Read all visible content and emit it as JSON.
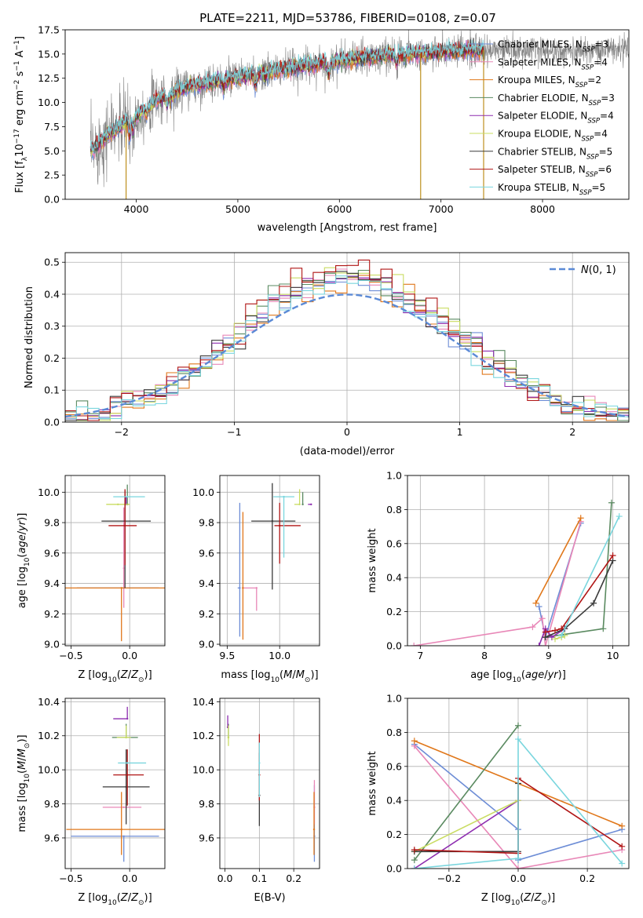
{
  "figure": {
    "title": "PLATE=2211, MJD=53786, FIBERID=0108, z=0.07"
  },
  "colors": {
    "Chabrier MILES": "#6d8dd6",
    "Salpeter MILES": "#e887b7",
    "Kroupa MILES": "#e0771a",
    "Chabrier ELODIE": "#5a8a60",
    "Salpeter ELODIE": "#8d2db0",
    "Kroupa ELODIE": "#c9dc62",
    "Chabrier STELIB": "#3a3a3a",
    "Salpeter STELIB": "#b01515",
    "Kroupa STELIB": "#7ad6de",
    "data": "#808080",
    "gaussian": "#5b8ad6"
  },
  "chart_data": [
    {
      "id": "spectrum",
      "type": "line",
      "title": "PLATE=2211, MJD=53786, FIBERID=0108, z=0.07",
      "xlabel": "wavelength [Angstrom, rest frame]",
      "ylabel": "Flux [f_λ 10^-17 erg cm^-2 s^-1 A^-1]",
      "xlim": [
        3300,
        8850
      ],
      "ylim": [
        0,
        17.5
      ],
      "xticks": [
        4000,
        5000,
        6000,
        7000,
        8000
      ],
      "yticks": [
        0.0,
        2.5,
        5.0,
        7.5,
        10.0,
        12.5,
        15.0,
        17.5
      ],
      "legend_position": "right",
      "legend": [
        {
          "label": "Chabrier MILES, N_SSP=3",
          "base": "Chabrier MILES, N",
          "sub": "SSP",
          "tail": "=3"
        },
        {
          "label": "Salpeter MILES, N_SSP=4",
          "base": "Salpeter MILES, N",
          "sub": "SSP",
          "tail": "=4"
        },
        {
          "label": "Kroupa MILES, N_SSP=2",
          "base": "Kroupa MILES, N",
          "sub": "SSP",
          "tail": "=2"
        },
        {
          "label": "Chabrier ELODIE, N_SSP=3",
          "base": "Chabrier ELODIE, N",
          "sub": "SSP",
          "tail": "=3"
        },
        {
          "label": "Salpeter ELODIE, N_SSP=4",
          "base": "Salpeter ELODIE, N",
          "sub": "SSP",
          "tail": "=4"
        },
        {
          "label": "Kroupa ELODIE, N_SSP=4",
          "base": "Kroupa ELODIE, N",
          "sub": "SSP",
          "tail": "=4"
        },
        {
          "label": "Chabrier STELIB, N_SSP=5",
          "base": "Chabrier STELIB, N",
          "sub": "SSP",
          "tail": "=5"
        },
        {
          "label": "Salpeter STELIB, N_SSP=6",
          "base": "Salpeter STELIB, N",
          "sub": "SSP",
          "tail": "=6"
        },
        {
          "label": "Kroupa STELIB, N_SSP=5",
          "base": "Kroupa STELIB, N",
          "sub": "SSP",
          "tail": "=5"
        }
      ],
      "continuum": [
        [
          3560,
          5.0
        ],
        [
          3700,
          6.5
        ],
        [
          3900,
          8.0
        ],
        [
          4000,
          8.6
        ],
        [
          4200,
          10.3
        ],
        [
          4500,
          11.6
        ],
        [
          5000,
          12.6
        ],
        [
          5500,
          13.5
        ],
        [
          6000,
          14.3
        ],
        [
          6500,
          14.9
        ],
        [
          7000,
          15.2
        ],
        [
          7400,
          15.4
        ]
      ],
      "data_range": [
        3550,
        8850
      ],
      "model_range": [
        3550,
        7420
      ],
      "sharp_lines": [
        [
          3900,
          0.0
        ],
        [
          6800,
          0.0
        ],
        [
          7420,
          0.0
        ]
      ]
    },
    {
      "id": "residuals",
      "type": "histogram",
      "xlabel": "(data-model)/error",
      "ylabel": "Normed distribution",
      "xlim": [
        -2.5,
        2.5
      ],
      "ylim": [
        0,
        0.53
      ],
      "xticks": [
        -2,
        -1,
        0,
        1,
        2
      ],
      "yticks": [
        0.0,
        0.1,
        0.2,
        0.3,
        0.4,
        0.5
      ],
      "bin_width": 0.1,
      "gaussian_label": "N(0,1)",
      "gaussian": {
        "mean": 0,
        "std": 1
      },
      "legend_position": "top-right"
    },
    {
      "id": "age-vs-Z",
      "type": "errorbar",
      "xlabel": "Z [log10(Z/Z_sun)]",
      "ylabel": "age [log10(age/yr)]",
      "xlim": [
        -0.55,
        0.3
      ],
      "ylim": [
        8.99,
        10.11
      ],
      "xticks": [
        -0.5,
        0.0
      ],
      "yticks": [
        9.0,
        9.2,
        9.4,
        9.6,
        9.8,
        10.0
      ],
      "points": [
        {
          "model": "Chabrier MILES",
          "x": -0.05,
          "xerr": [
            0.4,
            0.3
          ],
          "y": 9.37,
          "yerr": [
            0.0,
            0.0
          ]
        },
        {
          "model": "Salpeter MILES",
          "x": -0.05,
          "xerr": [
            0.0,
            0.0
          ],
          "y": 9.5,
          "yerr": [
            0.26,
            0.4
          ]
        },
        {
          "model": "Kroupa MILES",
          "x": -0.07,
          "xerr": [
            0.48,
            0.37
          ],
          "y": 9.37,
          "yerr": [
            0.35,
            0.0
          ]
        },
        {
          "model": "Chabrier ELODIE",
          "x": -0.02,
          "xerr": [
            0.0,
            0.0
          ],
          "y": 9.92,
          "yerr": [
            0.0,
            0.13
          ]
        },
        {
          "model": "Salpeter ELODIE",
          "x": -0.03,
          "xerr": [
            0.0,
            0.0
          ],
          "y": 9.92,
          "yerr": [
            0.0,
            0.05
          ]
        },
        {
          "model": "Kroupa ELODIE",
          "x": -0.1,
          "xerr": [
            0.1,
            0.1
          ],
          "y": 9.92,
          "yerr": [
            0.0,
            0.0
          ]
        },
        {
          "model": "Chabrier STELIB",
          "x": -0.04,
          "xerr": [
            0.2,
            0.22
          ],
          "y": 9.81,
          "yerr": [
            0.44,
            0.2
          ]
        },
        {
          "model": "Salpeter STELIB",
          "x": -0.04,
          "xerr": [
            0.14,
            0.1
          ],
          "y": 9.78,
          "yerr": [
            0.26,
            0.24
          ]
        },
        {
          "model": "Kroupa STELIB",
          "x": -0.02,
          "xerr": [
            0.12,
            0.15
          ],
          "y": 9.97,
          "yerr": [
            0.0,
            0.0
          ]
        }
      ]
    },
    {
      "id": "age-vs-mass",
      "type": "errorbar",
      "xlabel": "mass [log10(M/M_sun)]",
      "ylabel": "",
      "xlim": [
        9.43,
        10.38
      ],
      "ylim": [
        8.99,
        10.11
      ],
      "xticks": [
        9.5,
        10.0
      ],
      "yticks": [
        9.0,
        9.2,
        9.4,
        9.6,
        9.8,
        10.0
      ],
      "points": [
        {
          "model": "Chabrier MILES",
          "x": 9.62,
          "xerr": [
            0.02,
            0.0
          ],
          "y": 9.37,
          "yerr": [
            0.32,
            0.56
          ]
        },
        {
          "model": "Salpeter MILES",
          "x": 9.78,
          "xerr": [
            0.14,
            0.0
          ],
          "y": 9.37,
          "yerr": [
            0.15,
            0.0
          ]
        },
        {
          "model": "Kroupa MILES",
          "x": 9.65,
          "xerr": [
            0.0,
            0.0
          ],
          "y": 9.37,
          "yerr": [
            0.34,
            0.5
          ]
        },
        {
          "model": "Chabrier ELODIE",
          "x": 10.22,
          "xerr": [
            0.0,
            0.0
          ],
          "y": 9.92,
          "yerr": [
            0.0,
            0.08
          ]
        },
        {
          "model": "Salpeter ELODIE",
          "x": 10.3,
          "xerr": [
            0.03,
            0.0
          ],
          "y": 9.92,
          "yerr": [
            0.0,
            0.0
          ]
        },
        {
          "model": "Kroupa ELODIE",
          "x": 10.19,
          "xerr": [
            0.05,
            0.0
          ],
          "y": 9.92,
          "yerr": [
            0.0,
            0.1
          ]
        },
        {
          "model": "Chabrier STELIB",
          "x": 9.93,
          "xerr": [
            0.2,
            0.22
          ],
          "y": 9.81,
          "yerr": [
            0.45,
            0.25
          ]
        },
        {
          "model": "Salpeter STELIB",
          "x": 10.0,
          "xerr": [
            0.05,
            0.2
          ],
          "y": 9.78,
          "yerr": [
            0.25,
            0.15
          ]
        },
        {
          "model": "Kroupa STELIB",
          "x": 10.04,
          "xerr": [
            0.1,
            0.1
          ],
          "y": 9.97,
          "yerr": [
            0.4,
            0.0
          ]
        }
      ]
    },
    {
      "id": "weight-vs-age",
      "type": "line",
      "xlabel": "age [log10(age/yr)]",
      "ylabel": "mass weight",
      "xlim": [
        6.8,
        10.25
      ],
      "ylim": [
        0,
        1.0
      ],
      "xticks": [
        7,
        8,
        9,
        10
      ],
      "yticks": [
        0.0,
        0.2,
        0.4,
        0.6,
        0.8,
        1.0
      ],
      "series": [
        {
          "model": "Chabrier MILES",
          "x": [
            8.85,
            8.95,
            9.5
          ],
          "y": [
            0.23,
            0.05,
            0.72
          ]
        },
        {
          "model": "Salpeter MILES",
          "x": [
            6.9,
            8.75,
            8.9,
            8.95,
            9.5
          ],
          "y": [
            0.0,
            0.11,
            0.16,
            0.0,
            0.73
          ]
        },
        {
          "model": "Kroupa MILES",
          "x": [
            8.8,
            9.5
          ],
          "y": [
            0.25,
            0.75
          ]
        },
        {
          "model": "Chabrier ELODIE",
          "x": [
            8.95,
            9.85,
            9.98
          ],
          "y": [
            0.05,
            0.1,
            0.84
          ]
        },
        {
          "model": "Salpeter ELODIE",
          "x": [
            8.85,
            8.95,
            9.05,
            9.25
          ],
          "y": [
            0.0,
            0.1,
            0.05,
            0.1
          ]
        },
        {
          "model": "Kroupa ELODIE",
          "x": [
            9.1,
            9.2,
            9.25
          ],
          "y": [
            0.04,
            0.05,
            0.06
          ]
        },
        {
          "model": "Chabrier STELIB",
          "x": [
            8.95,
            9.25,
            9.7,
            10.0
          ],
          "y": [
            0.05,
            0.1,
            0.25,
            0.5
          ]
        },
        {
          "model": "Salpeter STELIB",
          "x": [
            8.95,
            9.1,
            9.2,
            10.0
          ],
          "y": [
            0.08,
            0.09,
            0.1,
            0.53
          ]
        },
        {
          "model": "Kroupa STELIB",
          "x": [
            9.2,
            10.1
          ],
          "y": [
            0.06,
            0.76
          ]
        }
      ]
    },
    {
      "id": "mass-vs-Z",
      "type": "errorbar",
      "xlabel": "Z [log10(Z/Z_sun)]",
      "ylabel": "mass [log10(M/M_sun)]",
      "xlim": [
        -0.55,
        0.3
      ],
      "ylim": [
        9.42,
        10.42
      ],
      "xticks": [
        -0.5,
        0.0
      ],
      "yticks": [
        9.6,
        9.8,
        10.0,
        10.2,
        10.4
      ],
      "points": [
        {
          "model": "Chabrier MILES",
          "x": -0.05,
          "xerr": [
            0.45,
            0.3
          ],
          "y": 9.61,
          "yerr": [
            0.15,
            0.0
          ]
        },
        {
          "model": "Salpeter MILES",
          "x": -0.05,
          "xerr": [
            0.18,
            0.15
          ],
          "y": 9.78,
          "yerr": [
            0.0,
            0.0
          ]
        },
        {
          "model": "Kroupa MILES",
          "x": -0.07,
          "xerr": [
            0.47,
            0.37
          ],
          "y": 9.65,
          "yerr": [
            0.15,
            0.22
          ]
        },
        {
          "model": "Chabrier ELODIE",
          "x": -0.03,
          "xerr": [
            0.12,
            0.1
          ],
          "y": 10.19,
          "yerr": [
            0.0,
            0.08
          ]
        },
        {
          "model": "Salpeter ELODIE",
          "x": -0.02,
          "xerr": [
            0.12,
            0.0
          ],
          "y": 10.3,
          "yerr": [
            0.0,
            0.07
          ]
        },
        {
          "model": "Kroupa ELODIE",
          "x": -0.03,
          "xerr": [
            0.08,
            0.04
          ],
          "y": 10.19,
          "yerr": [
            0.0,
            0.07
          ]
        },
        {
          "model": "Chabrier STELIB",
          "x": -0.03,
          "xerr": [
            0.2,
            0.2
          ],
          "y": 9.9,
          "yerr": [
            0.22,
            0.22
          ]
        },
        {
          "model": "Salpeter STELIB",
          "x": -0.02,
          "xerr": [
            0.12,
            0.14
          ],
          "y": 9.97,
          "yerr": [
            0.18,
            0.15
          ]
        },
        {
          "model": "Kroupa STELIB",
          "x": -0.02,
          "xerr": [
            0.08,
            0.16
          ],
          "y": 10.04,
          "yerr": [
            0.0,
            0.0
          ]
        }
      ]
    },
    {
      "id": "mass-vs-EBV",
      "type": "errorbar",
      "xlabel": "E(B-V)",
      "ylabel": "",
      "xlim": [
        -0.015,
        0.275
      ],
      "ylim": [
        9.42,
        10.42
      ],
      "xticks": [
        0.0,
        0.1,
        0.2
      ],
      "yticks": [
        9.6,
        9.8,
        10.0,
        10.2,
        10.4
      ],
      "points": [
        {
          "model": "Chabrier MILES",
          "x": 0.26,
          "xerr": [
            0.0,
            0.0
          ],
          "y": 9.61,
          "yerr": [
            0.15,
            0.3
          ]
        },
        {
          "model": "Salpeter MILES",
          "x": 0.26,
          "xerr": [
            0.0,
            0.0
          ],
          "y": 9.78,
          "yerr": [
            0.1,
            0.16
          ]
        },
        {
          "model": "Kroupa MILES",
          "x": 0.259,
          "xerr": [
            0.0,
            0.0
          ],
          "y": 9.65,
          "yerr": [
            0.15,
            0.22
          ]
        },
        {
          "model": "Chabrier ELODIE",
          "x": 0.01,
          "xerr": [
            0.0,
            0.0
          ],
          "y": 10.19,
          "yerr": [
            0.0,
            0.08
          ]
        },
        {
          "model": "Salpeter ELODIE",
          "x": 0.008,
          "xerr": [
            0.0,
            0.0
          ],
          "y": 10.25,
          "yerr": [
            0.0,
            0.07
          ]
        },
        {
          "model": "Kroupa ELODIE",
          "x": 0.01,
          "xerr": [
            0.0,
            0.0
          ],
          "y": 10.19,
          "yerr": [
            0.05,
            0.07
          ]
        },
        {
          "model": "Chabrier STELIB",
          "x": 0.1,
          "xerr": [
            0.0,
            0.0
          ],
          "y": 9.85,
          "yerr": [
            0.18,
            0.25
          ]
        },
        {
          "model": "Salpeter STELIB",
          "x": 0.1,
          "xerr": [
            0.0,
            0.0
          ],
          "y": 9.97,
          "yerr": [
            0.15,
            0.24
          ]
        },
        {
          "model": "Kroupa STELIB",
          "x": 0.1,
          "xerr": [
            0.0,
            0.0
          ],
          "y": 10.04,
          "yerr": [
            0.2,
            0.12
          ]
        }
      ]
    },
    {
      "id": "weight-vs-Z",
      "type": "line",
      "xlabel": "Z [log10(Z/Z_sun)]",
      "ylabel": "mass weight",
      "xlim": [
        -0.32,
        0.32
      ],
      "ylim": [
        0,
        1.0
      ],
      "xticks": [
        -0.2,
        0.0,
        0.2
      ],
      "yticks": [
        0.0,
        0.2,
        0.4,
        0.6,
        0.8,
        1.0
      ],
      "series": [
        {
          "model": "Chabrier MILES",
          "x": [
            -0.3,
            0.0,
            0.0,
            0.3
          ],
          "y": [
            0.73,
            0.23,
            0.05,
            0.23
          ]
        },
        {
          "model": "Salpeter MILES",
          "x": [
            -0.3,
            0.0,
            0.3
          ],
          "y": [
            0.72,
            0.0,
            0.11
          ]
        },
        {
          "model": "Kroupa MILES",
          "x": [
            -0.3,
            0.3
          ],
          "y": [
            0.75,
            0.25
          ]
        },
        {
          "model": "Chabrier ELODIE",
          "x": [
            -0.3,
            0.0
          ],
          "y": [
            0.05,
            0.84
          ]
        },
        {
          "model": "Salpeter ELODIE",
          "x": [
            -0.3,
            0.0
          ],
          "y": [
            0.0,
            0.4
          ]
        },
        {
          "model": "Kroupa ELODIE",
          "x": [
            -0.3,
            0.0
          ],
          "y": [
            0.1,
            0.4
          ]
        },
        {
          "model": "Chabrier STELIB",
          "x": [
            -0.3,
            0.0,
            0.0
          ],
          "y": [
            0.1,
            0.1,
            0.5
          ]
        },
        {
          "model": "Salpeter STELIB",
          "x": [
            -0.3,
            0.0,
            0.0,
            0.3
          ],
          "y": [
            0.11,
            0.09,
            0.53,
            0.13
          ]
        },
        {
          "model": "Kroupa STELIB",
          "x": [
            -0.3,
            0.0,
            0.0,
            0.3
          ],
          "y": [
            0.0,
            0.06,
            0.76,
            0.03
          ]
        }
      ]
    }
  ]
}
